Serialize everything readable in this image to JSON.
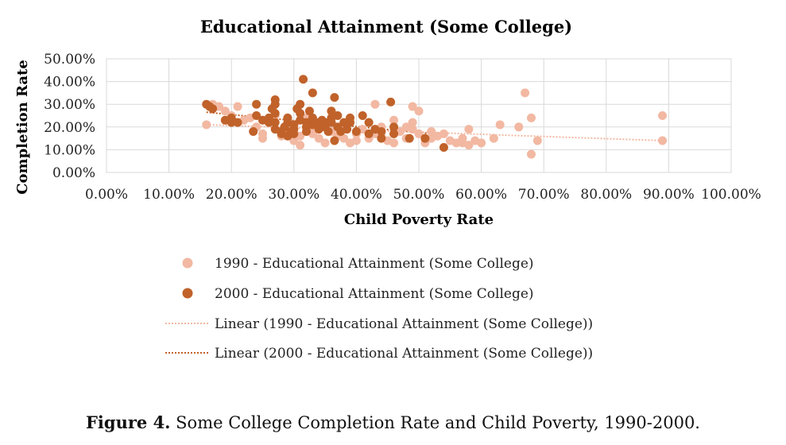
{
  "chart_data": {
    "type": "scatter",
    "title": "Educational Attainment (Some College)",
    "xlabel": "Child Poverty Rate",
    "ylabel": "Completion Rate",
    "xlim": [
      0,
      1
    ],
    "ylim": [
      0,
      0.5
    ],
    "x_ticks": [
      "0.00%",
      "10.00%",
      "20.00%",
      "30.00%",
      "40.00%",
      "50.00%",
      "60.00%",
      "70.00%",
      "80.00%",
      "90.00%",
      "100.00%"
    ],
    "y_ticks": [
      "0.00%",
      "10.00%",
      "20.00%",
      "30.00%",
      "40.00%",
      "50.00%"
    ],
    "grid": true,
    "legend_position": "bottom",
    "series": [
      {
        "name": "1990 - Educational Attainment (Some College)",
        "color": "#f2b8a2",
        "points": [
          [
            0.16,
            0.21
          ],
          [
            0.17,
            0.3
          ],
          [
            0.18,
            0.29
          ],
          [
            0.19,
            0.27
          ],
          [
            0.2,
            0.25
          ],
          [
            0.21,
            0.29
          ],
          [
            0.21,
            0.22
          ],
          [
            0.22,
            0.23
          ],
          [
            0.23,
            0.24
          ],
          [
            0.24,
            0.2
          ],
          [
            0.25,
            0.17
          ],
          [
            0.25,
            0.15
          ],
          [
            0.26,
            0.22
          ],
          [
            0.27,
            0.25
          ],
          [
            0.28,
            0.18
          ],
          [
            0.28,
            0.16
          ],
          [
            0.29,
            0.2
          ],
          [
            0.29,
            0.17
          ],
          [
            0.3,
            0.14
          ],
          [
            0.3,
            0.21
          ],
          [
            0.3,
            0.19
          ],
          [
            0.31,
            0.12
          ],
          [
            0.31,
            0.16
          ],
          [
            0.32,
            0.24
          ],
          [
            0.33,
            0.17
          ],
          [
            0.33,
            0.19
          ],
          [
            0.34,
            0.15
          ],
          [
            0.35,
            0.2
          ],
          [
            0.35,
            0.13
          ],
          [
            0.36,
            0.18
          ],
          [
            0.36,
            0.22
          ],
          [
            0.37,
            0.16
          ],
          [
            0.38,
            0.15
          ],
          [
            0.38,
            0.19
          ],
          [
            0.39,
            0.13
          ],
          [
            0.39,
            0.22
          ],
          [
            0.4,
            0.17
          ],
          [
            0.4,
            0.14
          ],
          [
            0.41,
            0.19
          ],
          [
            0.42,
            0.15
          ],
          [
            0.42,
            0.22
          ],
          [
            0.43,
            0.3
          ],
          [
            0.43,
            0.17
          ],
          [
            0.44,
            0.16
          ],
          [
            0.44,
            0.2
          ],
          [
            0.45,
            0.14
          ],
          [
            0.46,
            0.23
          ],
          [
            0.46,
            0.13
          ],
          [
            0.47,
            0.18
          ],
          [
            0.48,
            0.2
          ],
          [
            0.48,
            0.15
          ],
          [
            0.49,
            0.29
          ],
          [
            0.49,
            0.22
          ],
          [
            0.49,
            0.19
          ],
          [
            0.5,
            0.27
          ],
          [
            0.5,
            0.17
          ],
          [
            0.51,
            0.13
          ],
          [
            0.52,
            0.18
          ],
          [
            0.52,
            0.15
          ],
          [
            0.53,
            0.16
          ],
          [
            0.54,
            0.17
          ],
          [
            0.55,
            0.14
          ],
          [
            0.56,
            0.13
          ],
          [
            0.57,
            0.15
          ],
          [
            0.57,
            0.13
          ],
          [
            0.58,
            0.12
          ],
          [
            0.58,
            0.19
          ],
          [
            0.59,
            0.14
          ],
          [
            0.6,
            0.13
          ],
          [
            0.62,
            0.15
          ],
          [
            0.63,
            0.21
          ],
          [
            0.66,
            0.2
          ],
          [
            0.67,
            0.35
          ],
          [
            0.68,
            0.08
          ],
          [
            0.68,
            0.24
          ],
          [
            0.69,
            0.14
          ],
          [
            0.89,
            0.25
          ],
          [
            0.89,
            0.14
          ]
        ]
      },
      {
        "name": "2000 - Educational Attainment (Some College)",
        "color": "#c0622a",
        "points": [
          [
            0.16,
            0.3
          ],
          [
            0.165,
            0.29
          ],
          [
            0.17,
            0.28
          ],
          [
            0.19,
            0.23
          ],
          [
            0.2,
            0.22
          ],
          [
            0.2,
            0.24
          ],
          [
            0.21,
            0.22
          ],
          [
            0.235,
            0.18
          ],
          [
            0.24,
            0.25
          ],
          [
            0.24,
            0.3
          ],
          [
            0.25,
            0.23
          ],
          [
            0.26,
            0.22
          ],
          [
            0.26,
            0.24
          ],
          [
            0.265,
            0.28
          ],
          [
            0.27,
            0.32
          ],
          [
            0.27,
            0.3
          ],
          [
            0.27,
            0.26
          ],
          [
            0.27,
            0.22
          ],
          [
            0.27,
            0.19
          ],
          [
            0.28,
            0.18
          ],
          [
            0.28,
            0.17
          ],
          [
            0.285,
            0.2
          ],
          [
            0.29,
            0.24
          ],
          [
            0.29,
            0.22
          ],
          [
            0.29,
            0.16
          ],
          [
            0.295,
            0.18
          ],
          [
            0.3,
            0.21
          ],
          [
            0.3,
            0.19
          ],
          [
            0.3,
            0.17
          ],
          [
            0.305,
            0.28
          ],
          [
            0.31,
            0.3
          ],
          [
            0.31,
            0.26
          ],
          [
            0.31,
            0.23
          ],
          [
            0.315,
            0.41
          ],
          [
            0.32,
            0.22
          ],
          [
            0.32,
            0.2
          ],
          [
            0.32,
            0.18
          ],
          [
            0.325,
            0.27
          ],
          [
            0.33,
            0.35
          ],
          [
            0.33,
            0.24
          ],
          [
            0.33,
            0.21
          ],
          [
            0.34,
            0.22
          ],
          [
            0.34,
            0.19
          ],
          [
            0.345,
            0.23
          ],
          [
            0.35,
            0.22
          ],
          [
            0.35,
            0.2
          ],
          [
            0.355,
            0.18
          ],
          [
            0.36,
            0.27
          ],
          [
            0.36,
            0.24
          ],
          [
            0.36,
            0.22
          ],
          [
            0.365,
            0.33
          ],
          [
            0.365,
            0.14
          ],
          [
            0.37,
            0.25
          ],
          [
            0.37,
            0.2
          ],
          [
            0.375,
            0.18
          ],
          [
            0.38,
            0.22
          ],
          [
            0.385,
            0.19
          ],
          [
            0.39,
            0.24
          ],
          [
            0.39,
            0.22
          ],
          [
            0.4,
            0.18
          ],
          [
            0.41,
            0.25
          ],
          [
            0.42,
            0.22
          ],
          [
            0.42,
            0.17
          ],
          [
            0.43,
            0.19
          ],
          [
            0.44,
            0.15
          ],
          [
            0.44,
            0.18
          ],
          [
            0.455,
            0.31
          ],
          [
            0.46,
            0.2
          ],
          [
            0.46,
            0.17
          ],
          [
            0.485,
            0.15
          ],
          [
            0.51,
            0.15
          ],
          [
            0.54,
            0.11
          ]
        ]
      }
    ],
    "trendlines": [
      {
        "name": "Linear (1990 - Educational Attainment (Some College))",
        "color": "#f2b8a2",
        "x": [
          0.16,
          0.89
        ],
        "y": [
          0.21,
          0.14
        ]
      },
      {
        "name": "Linear (2000 - Educational Attainment (Some College))",
        "color": "#c0622a",
        "x": [
          0.16,
          0.54
        ],
        "y": [
          0.265,
          0.165
        ]
      }
    ]
  },
  "caption": {
    "label": "Figure 4.",
    "text": " Some College Completion Rate and Child Poverty, 1990-2000."
  }
}
